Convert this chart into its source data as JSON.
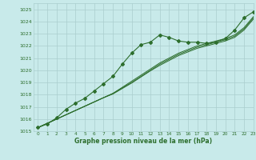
{
  "title": "Graphe pression niveau de la mer (hPa)",
  "bg_color": "#c8eaea",
  "grid_color": "#aacece",
  "line_color": "#2d6e2d",
  "xlim": [
    -0.5,
    23
  ],
  "ylim": [
    1015,
    1025.5
  ],
  "xticks": [
    0,
    1,
    2,
    3,
    4,
    5,
    6,
    7,
    8,
    9,
    10,
    11,
    12,
    13,
    14,
    15,
    16,
    17,
    18,
    19,
    20,
    21,
    22,
    23
  ],
  "yticks": [
    1015,
    1016,
    1017,
    1018,
    1019,
    1020,
    1021,
    1022,
    1023,
    1024,
    1025
  ],
  "series_main": [
    1015.3,
    1015.6,
    1016.1,
    1016.8,
    1017.3,
    1017.7,
    1018.3,
    1018.9,
    1019.5,
    1020.5,
    1021.4,
    1022.1,
    1022.3,
    1022.9,
    1022.7,
    1022.4,
    1022.3,
    1022.3,
    1022.2,
    1022.3,
    1022.6,
    1023.3,
    1024.3,
    1024.8
  ],
  "series_ref1": [
    1015.3,
    1015.65,
    1016.0,
    1016.35,
    1016.7,
    1017.05,
    1017.4,
    1017.75,
    1018.1,
    1018.6,
    1019.1,
    1019.6,
    1020.1,
    1020.6,
    1021.0,
    1021.4,
    1021.7,
    1022.0,
    1022.2,
    1022.4,
    1022.6,
    1022.9,
    1023.5,
    1024.4
  ],
  "series_ref2": [
    1015.3,
    1015.65,
    1016.0,
    1016.35,
    1016.7,
    1017.05,
    1017.4,
    1017.75,
    1018.1,
    1018.55,
    1019.0,
    1019.5,
    1020.0,
    1020.5,
    1020.9,
    1021.3,
    1021.6,
    1021.9,
    1022.1,
    1022.3,
    1022.5,
    1022.8,
    1023.4,
    1024.3
  ],
  "series_ref3": [
    1015.3,
    1015.65,
    1016.0,
    1016.35,
    1016.7,
    1017.05,
    1017.4,
    1017.75,
    1018.05,
    1018.5,
    1018.95,
    1019.45,
    1019.95,
    1020.4,
    1020.8,
    1021.2,
    1021.5,
    1021.8,
    1022.0,
    1022.2,
    1022.4,
    1022.7,
    1023.3,
    1024.2
  ]
}
